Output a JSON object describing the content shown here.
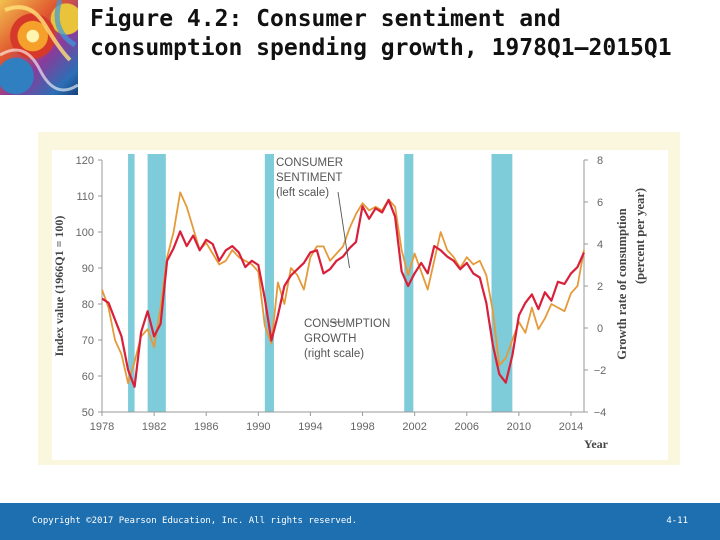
{
  "slide": {
    "title": "Figure 4.2: Consumer sentiment and consumption spending growth, 1978Q1–2015Q1"
  },
  "footer": {
    "copyright": "Copyright ©2017 Pearson Education, Inc. All rights reserved.",
    "page": "4-11"
  },
  "colors": {
    "sentiment": "#e59a3a",
    "consumption": "#d8203a",
    "recession": "#7ecbd9",
    "footer": "#1d6fb0"
  },
  "chart_data": {
    "type": "line",
    "title": "",
    "xlabel": "Year",
    "ylabel_left": "Index value (1966Q1 = 100)",
    "ylabel_right": "Growth rate of consumption (percent per year)",
    "xlim": [
      1978,
      2015
    ],
    "ylim_left": [
      50,
      120
    ],
    "ylim_right": [
      -4,
      8
    ],
    "x_ticks": [
      1978,
      1982,
      1986,
      1990,
      1994,
      1998,
      2002,
      2006,
      2010,
      2014
    ],
    "y_ticks_left": [
      50,
      60,
      70,
      80,
      90,
      100,
      110,
      120
    ],
    "y_ticks_right": [
      -4,
      -2,
      0,
      2,
      4,
      6,
      8
    ],
    "right_tick_labels": [
      "−4",
      "−2",
      "0",
      "2",
      "4",
      "6",
      "8"
    ],
    "recessions": [
      [
        1980.0,
        1980.5
      ],
      [
        1981.5,
        1982.9
      ],
      [
        1990.5,
        1991.2
      ],
      [
        2001.2,
        2001.9
      ],
      [
        2007.9,
        2009.5
      ]
    ],
    "annotations": [
      {
        "id": "sentiment",
        "lines": [
          "CONSUMER",
          "SENTIMENT",
          "(left scale)"
        ],
        "target_x": 1997.0,
        "target_y_left": 90
      },
      {
        "id": "consumption",
        "lines": [
          "CONSUMPTION",
          "GROWTH",
          "(right scale)"
        ],
        "target_x": 1995.5,
        "target_y_left": 75
      }
    ],
    "series": [
      {
        "name": "Consumer sentiment",
        "axis": "left",
        "x": [
          1978.0,
          1978.5,
          1979.0,
          1979.5,
          1980.0,
          1980.5,
          1981.0,
          1981.5,
          1982.0,
          1982.5,
          1983.0,
          1983.5,
          1984.0,
          1984.5,
          1985.0,
          1985.5,
          1986.0,
          1986.5,
          1987.0,
          1987.5,
          1988.0,
          1988.5,
          1989.0,
          1989.5,
          1990.0,
          1990.5,
          1991.0,
          1991.5,
          1992.0,
          1992.5,
          1993.0,
          1993.5,
          1994.0,
          1994.5,
          1995.0,
          1995.5,
          1996.0,
          1996.5,
          1997.0,
          1997.5,
          1998.0,
          1998.5,
          1999.0,
          1999.5,
          2000.0,
          2000.5,
          2001.0,
          2001.5,
          2002.0,
          2002.5,
          2003.0,
          2003.5,
          2004.0,
          2004.5,
          2005.0,
          2005.5,
          2006.0,
          2006.5,
          2007.0,
          2007.5,
          2008.0,
          2008.5,
          2009.0,
          2009.5,
          2010.0,
          2010.5,
          2011.0,
          2011.5,
          2012.0,
          2012.5,
          2013.0,
          2013.5,
          2014.0,
          2014.5,
          2015.0
        ],
        "values": [
          84,
          79,
          70,
          66,
          58,
          64,
          71,
          73,
          68,
          79,
          93,
          100,
          111,
          107,
          101,
          95,
          97,
          94,
          91,
          92,
          95,
          93,
          92,
          91,
          89,
          74,
          69,
          86,
          80,
          90,
          88,
          84,
          93,
          96,
          96,
          92,
          94,
          96,
          101,
          105,
          108,
          106,
          107,
          106,
          109,
          107,
          95,
          88,
          94,
          89,
          84,
          92,
          100,
          95,
          93,
          90,
          93,
          91,
          92,
          88,
          78,
          63,
          65,
          70,
          75,
          72,
          79,
          73,
          76,
          80,
          79,
          78,
          83,
          85,
          95
        ]
      },
      {
        "name": "Consumption growth",
        "axis": "right",
        "x": [
          1978.0,
          1978.5,
          1979.0,
          1979.5,
          1980.0,
          1980.5,
          1981.0,
          1981.5,
          1982.0,
          1982.5,
          1983.0,
          1983.5,
          1984.0,
          1984.5,
          1985.0,
          1985.5,
          1986.0,
          1986.5,
          1987.0,
          1987.5,
          1988.0,
          1988.5,
          1989.0,
          1989.5,
          1990.0,
          1990.5,
          1991.0,
          1991.5,
          1992.0,
          1992.5,
          1993.0,
          1993.5,
          1994.0,
          1994.5,
          1995.0,
          1995.5,
          1996.0,
          1996.5,
          1997.0,
          1997.5,
          1998.0,
          1998.5,
          1999.0,
          1999.5,
          2000.0,
          2000.5,
          2001.0,
          2001.5,
          2002.0,
          2002.5,
          2003.0,
          2003.5,
          2004.0,
          2004.5,
          2005.0,
          2005.5,
          2006.0,
          2006.5,
          2007.0,
          2007.5,
          2008.0,
          2008.5,
          2009.0,
          2009.5,
          2010.0,
          2010.5,
          2011.0,
          2011.5,
          2012.0,
          2012.5,
          2013.0,
          2013.5,
          2014.0,
          2014.5,
          2015.0
        ],
        "values": [
          1.4,
          1.2,
          0.4,
          -0.4,
          -2.0,
          -2.8,
          -0.2,
          0.8,
          -0.4,
          0.2,
          3.2,
          3.8,
          4.6,
          3.9,
          4.4,
          3.7,
          4.2,
          4.0,
          3.2,
          3.7,
          3.9,
          3.6,
          2.9,
          3.2,
          3.0,
          1.4,
          -0.6,
          0.6,
          2.0,
          2.5,
          2.8,
          3.1,
          3.6,
          3.7,
          2.6,
          2.8,
          3.2,
          3.4,
          3.8,
          4.1,
          5.8,
          5.2,
          5.7,
          5.5,
          6.1,
          5.3,
          2.7,
          2.0,
          2.6,
          3.1,
          2.6,
          3.9,
          3.7,
          3.4,
          3.2,
          2.8,
          3.1,
          2.6,
          2.4,
          1.2,
          -0.8,
          -2.2,
          -2.6,
          -1.3,
          0.6,
          1.2,
          1.6,
          0.9,
          1.7,
          1.3,
          2.2,
          2.1,
          2.6,
          2.9,
          3.6
        ]
      }
    ]
  }
}
